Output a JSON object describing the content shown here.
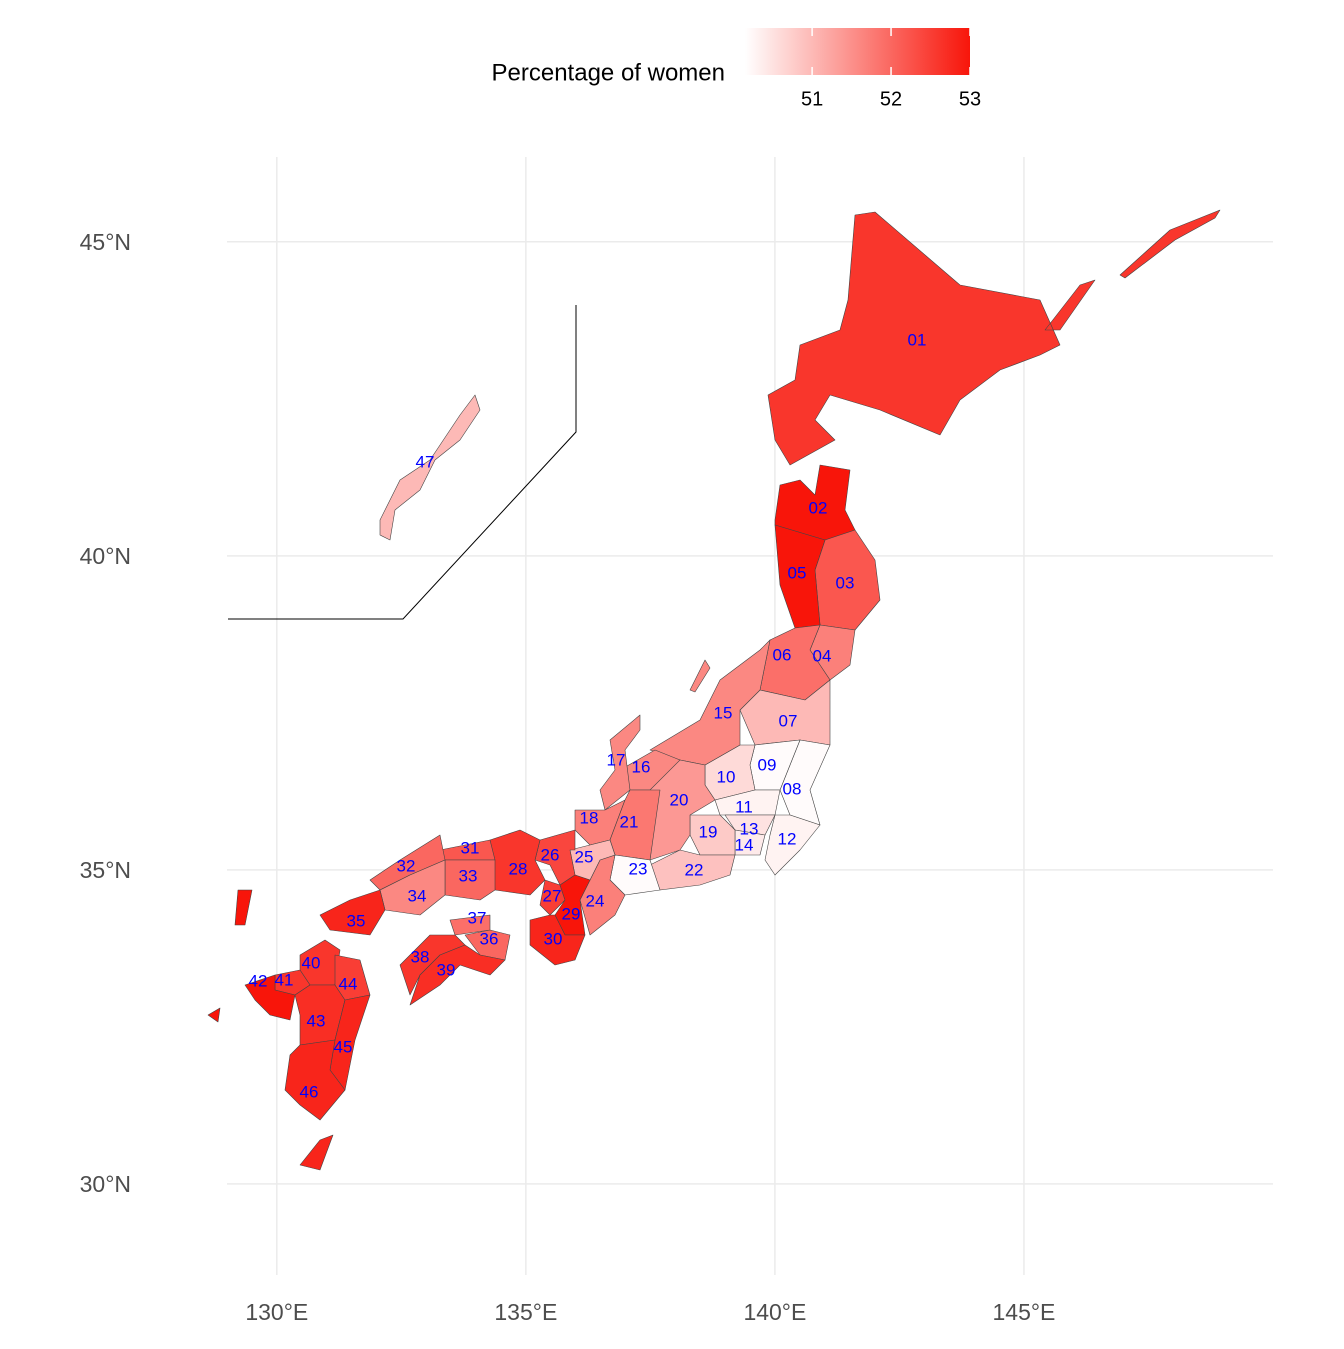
{
  "chart_data": {
    "type": "choropleth",
    "legend_title": "Percentage of women",
    "legend_ticks": [
      51,
      52,
      53
    ],
    "color_limits": [
      50.15,
      53.0
    ],
    "low_color": "#ffffff",
    "high_color": "#f8150a",
    "label_color": "#0000ff",
    "grid": true,
    "xlim": [
      129,
      150
    ],
    "ylim": [
      28.55,
      46.35
    ],
    "xticks": [
      {
        "value": 130,
        "label": "130°E"
      },
      {
        "value": 135,
        "label": "135°E"
      },
      {
        "value": 140,
        "label": "140°E"
      },
      {
        "value": 145,
        "label": "145°E"
      }
    ],
    "yticks": [
      {
        "value": 30,
        "label": "30°N"
      },
      {
        "value": 35,
        "label": "35°N"
      },
      {
        "value": 40,
        "label": "40°N"
      },
      {
        "value": 45,
        "label": "45°N"
      }
    ],
    "categories": [
      "01",
      "02",
      "03",
      "04",
      "05",
      "06",
      "07",
      "08",
      "09",
      "10",
      "11",
      "12",
      "13",
      "14",
      "15",
      "16",
      "17",
      "18",
      "19",
      "20",
      "21",
      "22",
      "23",
      "24",
      "25",
      "26",
      "27",
      "28",
      "29",
      "30",
      "31",
      "32",
      "33",
      "34",
      "35",
      "36",
      "37",
      "38",
      "39",
      "40",
      "41",
      "42",
      "43",
      "44",
      "45",
      "46",
      "47"
    ],
    "values": [
      52.6,
      53.0,
      52.2,
      51.7,
      53.0,
      51.9,
      51.0,
      50.2,
      50.2,
      50.6,
      50.3,
      50.3,
      50.5,
      50.4,
      51.6,
      51.6,
      51.6,
      51.7,
      50.8,
      51.4,
      51.8,
      50.9,
      50.2,
      51.7,
      51.0,
      52.4,
      52.5,
      52.6,
      53.0,
      52.8,
      52.2,
      52.0,
      52.0,
      51.6,
      52.8,
      52.0,
      51.9,
      52.6,
      52.7,
      52.6,
      52.6,
      53.0,
      52.7,
      52.5,
      52.8,
      52.8,
      51.0
    ]
  }
}
